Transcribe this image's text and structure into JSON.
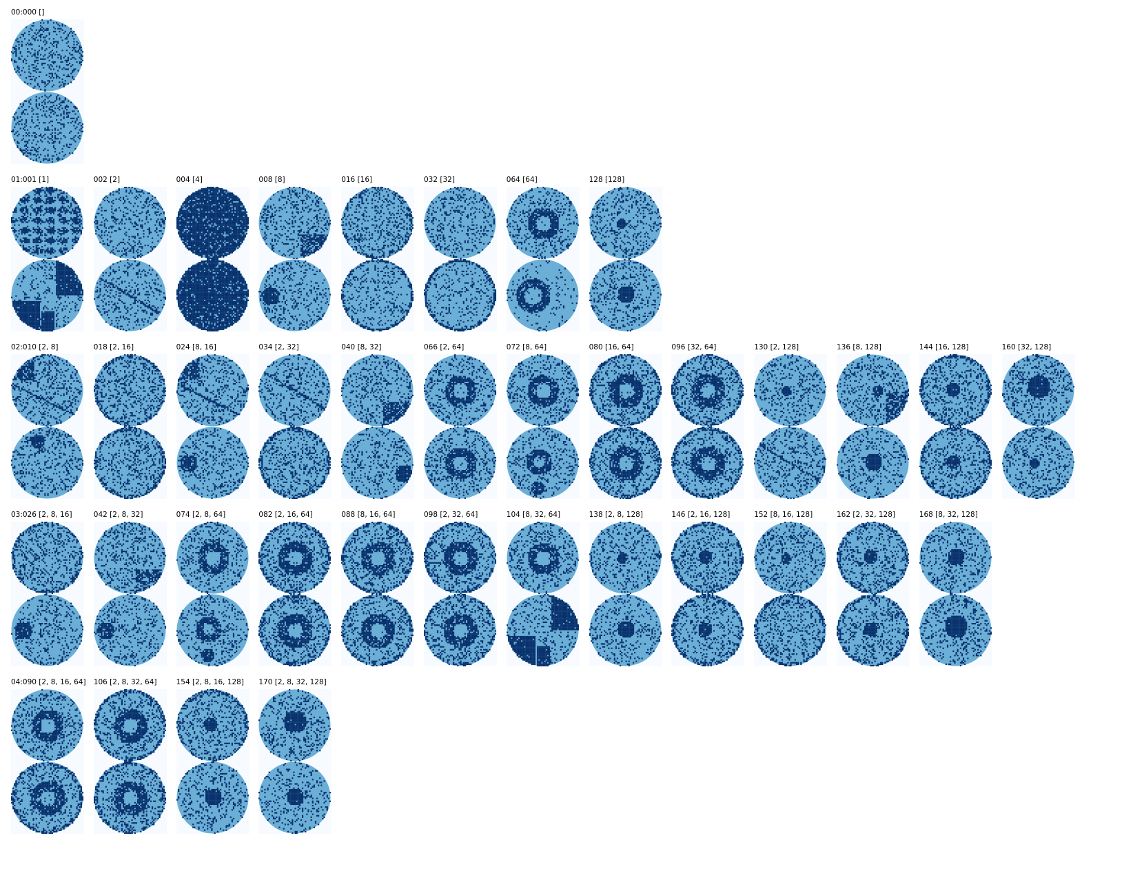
{
  "colors": {
    "background": "#f7fbff",
    "light": "#6baed6",
    "dark": "#08306b"
  },
  "rows": [
    {
      "panels": [
        {
          "label": "00:000 []",
          "top": "noise",
          "bottom": "noise"
        }
      ]
    },
    {
      "panels": [
        {
          "label": "01:001 [1]",
          "top": "maze",
          "bottom": "blocks"
        },
        {
          "label": "002 [2]",
          "top": "noise",
          "bottom": "lines"
        },
        {
          "label": "004 [4]",
          "top": "dark",
          "bottom": "dark"
        },
        {
          "label": "008 [8]",
          "top": "corner-patch",
          "bottom": "left-patch"
        },
        {
          "label": "016 [16]",
          "top": "rim",
          "bottom": "rim-noise"
        },
        {
          "label": "032 [32]",
          "top": "noise",
          "bottom": "rim-noise"
        },
        {
          "label": "064 [64]",
          "top": "ring",
          "bottom": "ring-big"
        },
        {
          "label": "128 [128]",
          "top": "dot-small",
          "bottom": "dot"
        }
      ]
    },
    {
      "panels": [
        {
          "label": "02:010 [2, 8]",
          "top": "lines-patch",
          "bottom": "blob"
        },
        {
          "label": "018 [2, 16]",
          "top": "rim",
          "bottom": "rim"
        },
        {
          "label": "024 [8, 16]",
          "top": "lines-patch",
          "bottom": "left-patch"
        },
        {
          "label": "034 [2, 32]",
          "top": "lines",
          "bottom": "rim"
        },
        {
          "label": "040 [8, 32]",
          "top": "corner-patch",
          "bottom": "right-patch"
        },
        {
          "label": "066 [2, 64]",
          "top": "ring",
          "bottom": "ring"
        },
        {
          "label": "072 [8, 64]",
          "top": "ring",
          "bottom": "ring-blob"
        },
        {
          "label": "080 [16, 64]",
          "top": "ring-rim",
          "bottom": "ring-rim"
        },
        {
          "label": "096 [32, 64]",
          "top": "ring-rim",
          "bottom": "ring-rim"
        },
        {
          "label": "130 [2, 128]",
          "top": "dot-small",
          "bottom": "lines"
        },
        {
          "label": "136 [8, 128]",
          "top": "dot-patch",
          "bottom": "dot"
        },
        {
          "label": "144 [16, 128]",
          "top": "dot-rim",
          "bottom": "dot-rim"
        },
        {
          "label": "160 [32, 128]",
          "top": "dot-big",
          "bottom": "dot-small"
        }
      ]
    },
    {
      "panels": [
        {
          "label": "03:026 [2, 8, 16]",
          "top": "rim",
          "bottom": "left-patch"
        },
        {
          "label": "042 [2, 8, 32]",
          "top": "corner-patch",
          "bottom": "left-patch"
        },
        {
          "label": "074 [2, 8, 64]",
          "top": "ring",
          "bottom": "ring-blob"
        },
        {
          "label": "082 [2, 16, 64]",
          "top": "ring-rim",
          "bottom": "ring-rim"
        },
        {
          "label": "088 [8, 16, 64]",
          "top": "ring-rim",
          "bottom": "ring-rim"
        },
        {
          "label": "098 [2, 32, 64]",
          "top": "ring-rim",
          "bottom": "ring-rim"
        },
        {
          "label": "104 [8, 32, 64]",
          "top": "ring",
          "bottom": "blocks"
        },
        {
          "label": "138 [2, 8, 128]",
          "top": "dot-small",
          "bottom": "dot"
        },
        {
          "label": "146 [2, 16, 128]",
          "top": "dot-rim",
          "bottom": "dot-rim"
        },
        {
          "label": "152 [8, 16, 128]",
          "top": "dot-small",
          "bottom": "rim"
        },
        {
          "label": "162 [2, 32, 128]",
          "top": "dot-rim",
          "bottom": "dot-rim"
        },
        {
          "label": "168 [8, 32, 128]",
          "top": "dot",
          "bottom": "dot-big"
        }
      ]
    },
    {
      "panels": [
        {
          "label": "04:090 [2, 8, 16, 64]",
          "top": "ring",
          "bottom": "ring-rim"
        },
        {
          "label": "106 [2, 8, 32, 64]",
          "top": "ring-rim",
          "bottom": "ring-rim"
        },
        {
          "label": "154 [2, 8, 16, 128]",
          "top": "dot-rim",
          "bottom": "dot"
        },
        {
          "label": "170 [2, 8, 32, 128]",
          "top": "dot-big",
          "bottom": "dot"
        }
      ]
    }
  ]
}
